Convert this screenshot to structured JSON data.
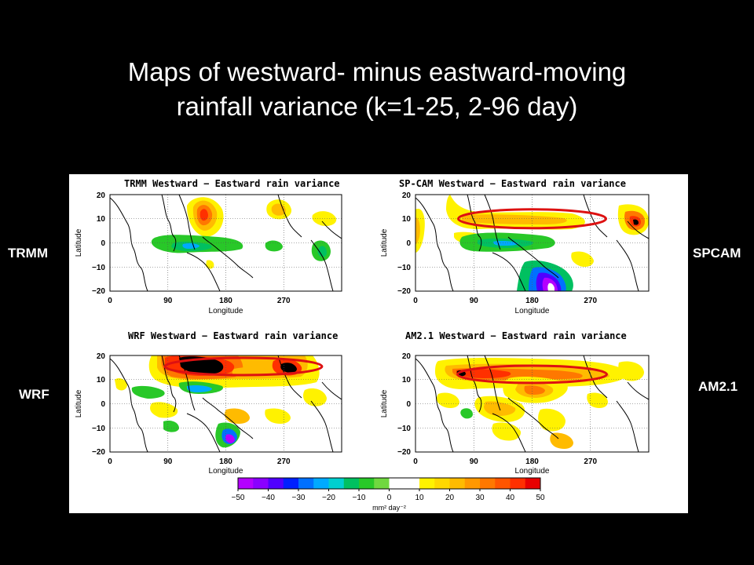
{
  "slide": {
    "title_line1": "Maps of westward- minus eastward-moving",
    "title_line2": "rainfall variance (k=1-25, 2-96 day)"
  },
  "side_labels": {
    "top_left": "TRMM",
    "top_right": "SPCAM",
    "bottom_left": "WRF",
    "bottom_right": "AM2.1"
  },
  "map_axes": {
    "xlabel": "Longitude",
    "ylabel": "Latitude",
    "lon_range": [
      0,
      360
    ],
    "lat_range": [
      -20,
      20
    ],
    "lon_ticks": [
      "0",
      "90",
      "180",
      "270"
    ],
    "lat_ticks": [
      "20",
      "10",
      "0",
      "−10",
      "−20"
    ],
    "grid": "dotted"
  },
  "panels": [
    {
      "id": "trmm",
      "title": "TRMM Westward − Eastward rain variance",
      "highlight_ellipse": null
    },
    {
      "id": "spcam",
      "title": "SP-CAM Westward − Eastward rain variance",
      "highlight_ellipse": {
        "lon_range": [
          55,
          270
        ],
        "lat": 10
      }
    },
    {
      "id": "wrf",
      "title": "WRF Westward − Eastward rain variance",
      "highlight_ellipse": {
        "lon_range": [
          80,
          295
        ],
        "lat": 10
      }
    },
    {
      "id": "am21",
      "title": "AM2.1 Westward − Eastward rain variance",
      "highlight_ellipse": {
        "lon_range": [
          55,
          270
        ],
        "lat": 8
      }
    }
  ],
  "colorbar": {
    "ticks": [
      "−50",
      "−40",
      "−30",
      "−20",
      "−10",
      "0",
      "10",
      "20",
      "30",
      "40",
      "50"
    ],
    "units": "mm² day⁻²",
    "range": [
      -50,
      50
    ],
    "colors": [
      "#b400ff",
      "#8a00ff",
      "#5000ff",
      "#0020ff",
      "#0070ff",
      "#00aaff",
      "#00d0d0",
      "#00c060",
      "#28c828",
      "#70d840",
      "#ffffff",
      "#ffffff",
      "#fff200",
      "#ffd800",
      "#ffbb00",
      "#ff9800",
      "#ff7800",
      "#ff5500",
      "#ff3000",
      "#e80000"
    ],
    "highlight_color": "#dd1111"
  }
}
